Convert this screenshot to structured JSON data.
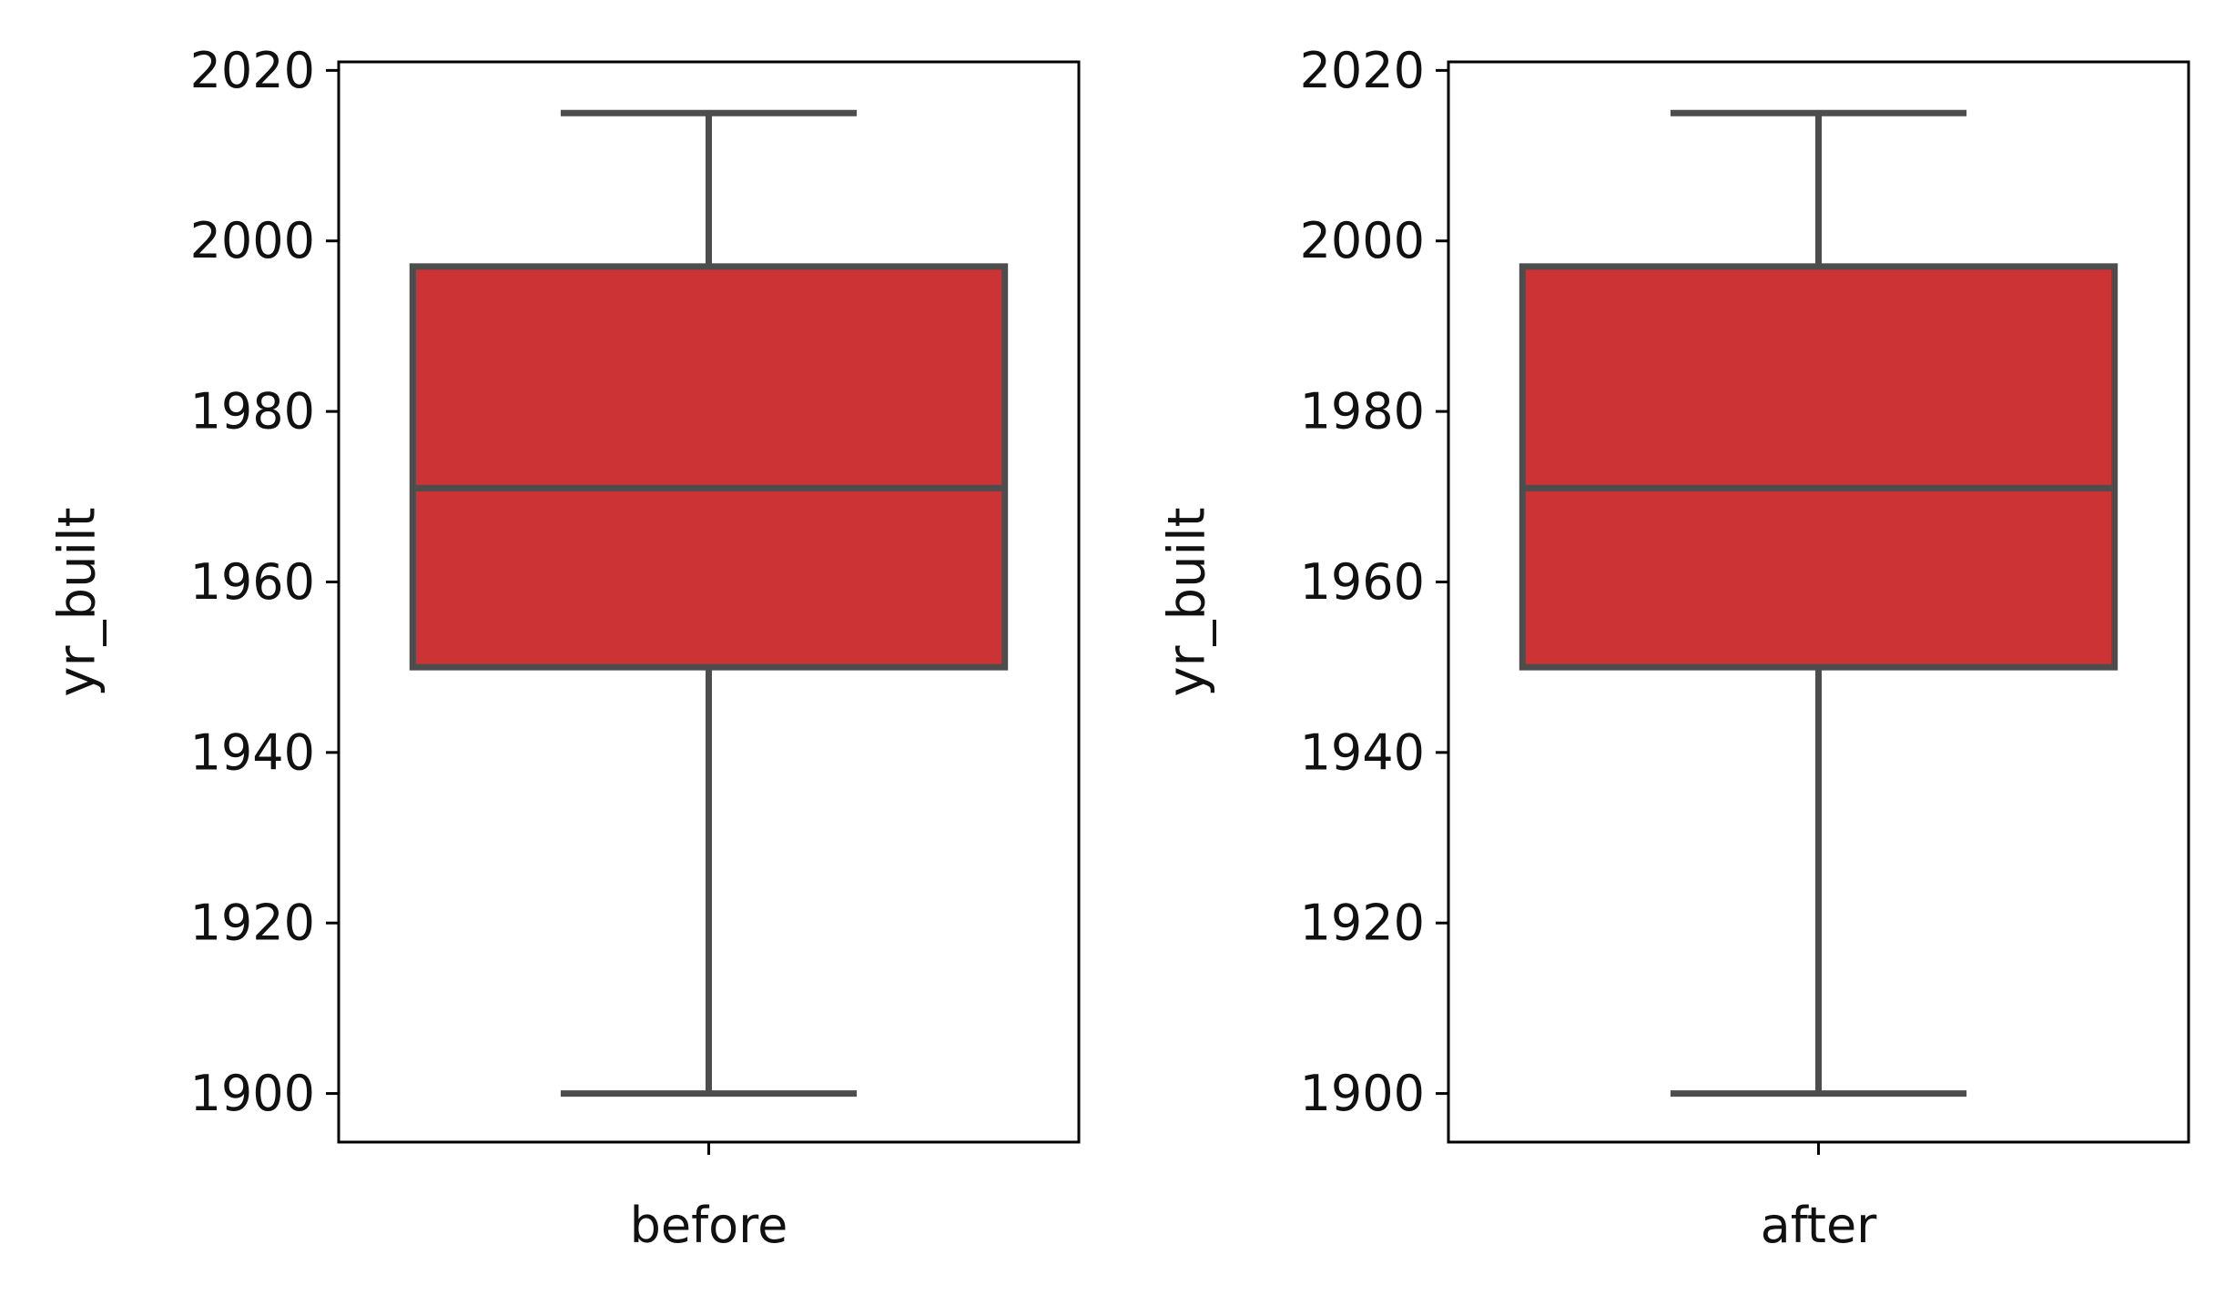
{
  "chart_data": [
    {
      "type": "box",
      "title": "",
      "xlabel": "",
      "ylabel": "yr_built",
      "categories": [
        "before"
      ],
      "ylim": [
        1894.3,
        2021
      ],
      "yticks": [
        1900,
        1920,
        1940,
        1960,
        1980,
        2000,
        2020
      ],
      "grid": false,
      "boxes": [
        {
          "category": "before",
          "whisker_low": 1900,
          "q1": 1950,
          "median": 1971,
          "q3": 1997,
          "whisker_high": 2015
        }
      ]
    },
    {
      "type": "box",
      "title": "",
      "xlabel": "",
      "ylabel": "yr_built",
      "categories": [
        "after"
      ],
      "ylim": [
        1894.3,
        2021
      ],
      "yticks": [
        1900,
        1920,
        1940,
        1960,
        1980,
        2000,
        2020
      ],
      "grid": false,
      "boxes": [
        {
          "category": "after",
          "whisker_low": 1900,
          "q1": 1950,
          "median": 1971,
          "q3": 1997,
          "whisker_high": 2015
        }
      ]
    }
  ],
  "colors": {
    "box_fill": "#cb3335",
    "box_edge": "#4d4d4d",
    "axis": "#000000"
  }
}
